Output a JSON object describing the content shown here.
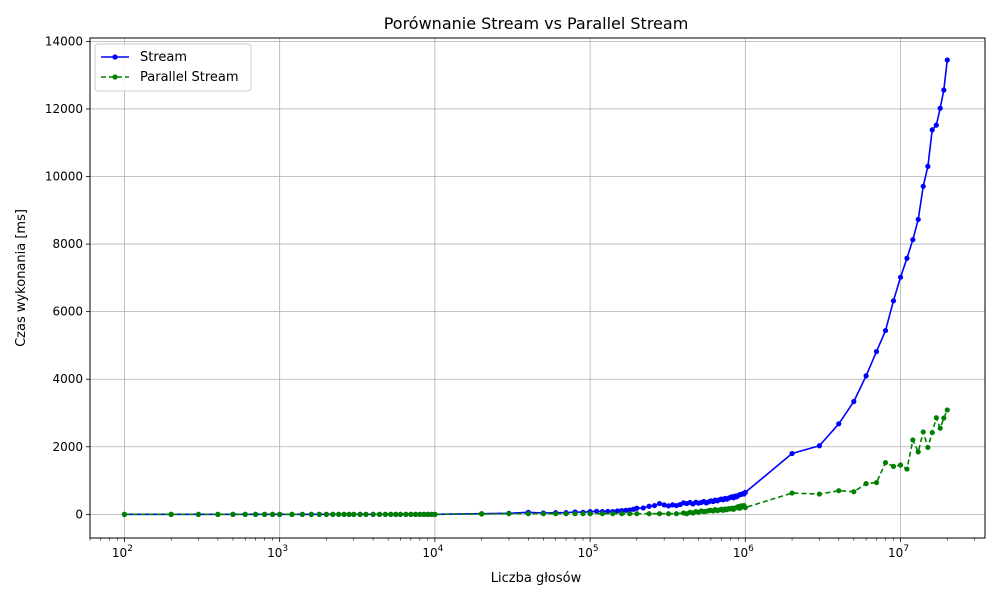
{
  "chart_data": {
    "type": "line",
    "title": "Porównanie Stream vs Parallel Stream",
    "xlabel": "Liczba głosów",
    "ylabel": "Czas wykonania [ms]",
    "xscale": "log",
    "xlim": [
      60,
      35000000
    ],
    "ylim": [
      -700,
      14100
    ],
    "x_ticks": [
      100,
      1000,
      10000,
      100000,
      1000000,
      10000000
    ],
    "x_tick_base": "10",
    "x_tick_exponents": [
      "2",
      "3",
      "4",
      "5",
      "6",
      "7"
    ],
    "y_ticks": [
      "0",
      "2000",
      "4000",
      "6000",
      "8000",
      "10000",
      "12000",
      "14000"
    ],
    "grid": true,
    "legend_position": "upper-left",
    "series": [
      {
        "name": "Stream",
        "color": "#0000ff",
        "linestyle": "solid",
        "marker": "circle",
        "points": [
          [
            100,
            0
          ],
          [
            200,
            0
          ],
          [
            300,
            0
          ],
          [
            400,
            0
          ],
          [
            500,
            0
          ],
          [
            600,
            0
          ],
          [
            700,
            0
          ],
          [
            800,
            0
          ],
          [
            900,
            0
          ],
          [
            1000,
            0
          ],
          [
            1200,
            0
          ],
          [
            1400,
            0
          ],
          [
            1600,
            0
          ],
          [
            1800,
            0
          ],
          [
            2000,
            0
          ],
          [
            2200,
            0
          ],
          [
            2400,
            0
          ],
          [
            2600,
            0
          ],
          [
            2800,
            0
          ],
          [
            3000,
            0
          ],
          [
            3300,
            0
          ],
          [
            3600,
            0
          ],
          [
            4000,
            0
          ],
          [
            4400,
            0
          ],
          [
            4800,
            0
          ],
          [
            5200,
            0
          ],
          [
            5600,
            0
          ],
          [
            6000,
            0
          ],
          [
            6500,
            0
          ],
          [
            7000,
            0
          ],
          [
            7500,
            0
          ],
          [
            8000,
            0
          ],
          [
            8500,
            0
          ],
          [
            9000,
            0
          ],
          [
            9500,
            0
          ],
          [
            10000,
            0
          ],
          [
            20000,
            20
          ],
          [
            30000,
            30
          ],
          [
            40000,
            60
          ],
          [
            50000,
            40
          ],
          [
            60000,
            50
          ],
          [
            70000,
            50
          ],
          [
            80000,
            70
          ],
          [
            90000,
            60
          ],
          [
            100000,
            80
          ],
          [
            110000,
            90
          ],
          [
            120000,
            80
          ],
          [
            130000,
            90
          ],
          [
            140000,
            80
          ],
          [
            150000,
            100
          ],
          [
            160000,
            110
          ],
          [
            170000,
            120
          ],
          [
            180000,
            130
          ],
          [
            190000,
            150
          ],
          [
            200000,
            180
          ],
          [
            220000,
            190
          ],
          [
            240000,
            240
          ],
          [
            260000,
            260
          ],
          [
            280000,
            320
          ],
          [
            300000,
            280
          ],
          [
            320000,
            250
          ],
          [
            340000,
            280
          ],
          [
            360000,
            260
          ],
          [
            380000,
            290
          ],
          [
            400000,
            340
          ],
          [
            420000,
            320
          ],
          [
            440000,
            350
          ],
          [
            460000,
            310
          ],
          [
            480000,
            360
          ],
          [
            500000,
            330
          ],
          [
            520000,
            350
          ],
          [
            540000,
            380
          ],
          [
            560000,
            340
          ],
          [
            580000,
            370
          ],
          [
            600000,
            400
          ],
          [
            620000,
            380
          ],
          [
            640000,
            420
          ],
          [
            660000,
            400
          ],
          [
            680000,
            430
          ],
          [
            700000,
            450
          ],
          [
            720000,
            430
          ],
          [
            740000,
            470
          ],
          [
            760000,
            450
          ],
          [
            780000,
            480
          ],
          [
            800000,
            500
          ],
          [
            820000,
            520
          ],
          [
            840000,
            490
          ],
          [
            860000,
            540
          ],
          [
            880000,
            520
          ],
          [
            900000,
            560
          ],
          [
            920000,
            580
          ],
          [
            940000,
            590
          ],
          [
            960000,
            610
          ],
          [
            980000,
            600
          ],
          [
            1000000,
            650
          ],
          [
            2000000,
            1800
          ],
          [
            3000000,
            2030
          ],
          [
            4000000,
            2680
          ],
          [
            5000000,
            3340
          ],
          [
            6000000,
            4100
          ],
          [
            7000000,
            4820
          ],
          [
            8000000,
            5440
          ],
          [
            9000000,
            6320
          ],
          [
            10000000,
            7020
          ],
          [
            11000000,
            7580
          ],
          [
            12000000,
            8130
          ],
          [
            13000000,
            8730
          ],
          [
            14000000,
            9710
          ],
          [
            15000000,
            10300
          ],
          [
            16000000,
            11380
          ],
          [
            17000000,
            11520
          ],
          [
            18000000,
            12020
          ],
          [
            19000000,
            12560
          ],
          [
            20000000,
            13450
          ]
        ]
      },
      {
        "name": "Parallel Stream",
        "color": "#008000",
        "linestyle": "dashed",
        "marker": "circle",
        "points": [
          [
            100,
            0
          ],
          [
            200,
            0
          ],
          [
            300,
            0
          ],
          [
            400,
            0
          ],
          [
            500,
            0
          ],
          [
            600,
            0
          ],
          [
            700,
            0
          ],
          [
            800,
            0
          ],
          [
            900,
            0
          ],
          [
            1000,
            0
          ],
          [
            1200,
            0
          ],
          [
            1400,
            0
          ],
          [
            1600,
            0
          ],
          [
            1800,
            0
          ],
          [
            2000,
            0
          ],
          [
            2200,
            0
          ],
          [
            2400,
            0
          ],
          [
            2600,
            0
          ],
          [
            2800,
            0
          ],
          [
            3000,
            0
          ],
          [
            3300,
            0
          ],
          [
            3600,
            0
          ],
          [
            4000,
            0
          ],
          [
            4400,
            0
          ],
          [
            4800,
            0
          ],
          [
            5200,
            0
          ],
          [
            5600,
            0
          ],
          [
            6000,
            0
          ],
          [
            6500,
            0
          ],
          [
            7000,
            0
          ],
          [
            7500,
            0
          ],
          [
            8000,
            0
          ],
          [
            8500,
            0
          ],
          [
            9000,
            0
          ],
          [
            9500,
            0
          ],
          [
            10000,
            0
          ],
          [
            20000,
            10
          ],
          [
            30000,
            20
          ],
          [
            40000,
            20
          ],
          [
            50000,
            20
          ],
          [
            60000,
            20
          ],
          [
            70000,
            20
          ],
          [
            80000,
            20
          ],
          [
            90000,
            20
          ],
          [
            100000,
            20
          ],
          [
            120000,
            20
          ],
          [
            140000,
            20
          ],
          [
            160000,
            20
          ],
          [
            180000,
            20
          ],
          [
            200000,
            20
          ],
          [
            240000,
            20
          ],
          [
            280000,
            20
          ],
          [
            320000,
            20
          ],
          [
            360000,
            20
          ],
          [
            400000,
            40
          ],
          [
            420000,
            20
          ],
          [
            440000,
            60
          ],
          [
            460000,
            40
          ],
          [
            480000,
            80
          ],
          [
            500000,
            60
          ],
          [
            520000,
            100
          ],
          [
            540000,
            80
          ],
          [
            560000,
            90
          ],
          [
            580000,
            110
          ],
          [
            600000,
            120
          ],
          [
            620000,
            100
          ],
          [
            640000,
            140
          ],
          [
            660000,
            110
          ],
          [
            680000,
            130
          ],
          [
            700000,
            150
          ],
          [
            720000,
            120
          ],
          [
            740000,
            160
          ],
          [
            760000,
            140
          ],
          [
            780000,
            170
          ],
          [
            800000,
            160
          ],
          [
            820000,
            180
          ],
          [
            840000,
            150
          ],
          [
            860000,
            190
          ],
          [
            880000,
            200
          ],
          [
            900000,
            230
          ],
          [
            920000,
            180
          ],
          [
            940000,
            250
          ],
          [
            960000,
            220
          ],
          [
            980000,
            260
          ],
          [
            1000000,
            200
          ],
          [
            2000000,
            630
          ],
          [
            3000000,
            600
          ],
          [
            4000000,
            700
          ],
          [
            5000000,
            670
          ],
          [
            6000000,
            910
          ],
          [
            7000000,
            940
          ],
          [
            8000000,
            1530
          ],
          [
            9000000,
            1420
          ],
          [
            10000000,
            1460
          ],
          [
            11000000,
            1340
          ],
          [
            12000000,
            2200
          ],
          [
            13000000,
            1850
          ],
          [
            14000000,
            2440
          ],
          [
            15000000,
            1980
          ],
          [
            16000000,
            2420
          ],
          [
            17000000,
            2860
          ],
          [
            18000000,
            2550
          ],
          [
            19000000,
            2850
          ],
          [
            20000000,
            3090
          ]
        ]
      }
    ]
  }
}
